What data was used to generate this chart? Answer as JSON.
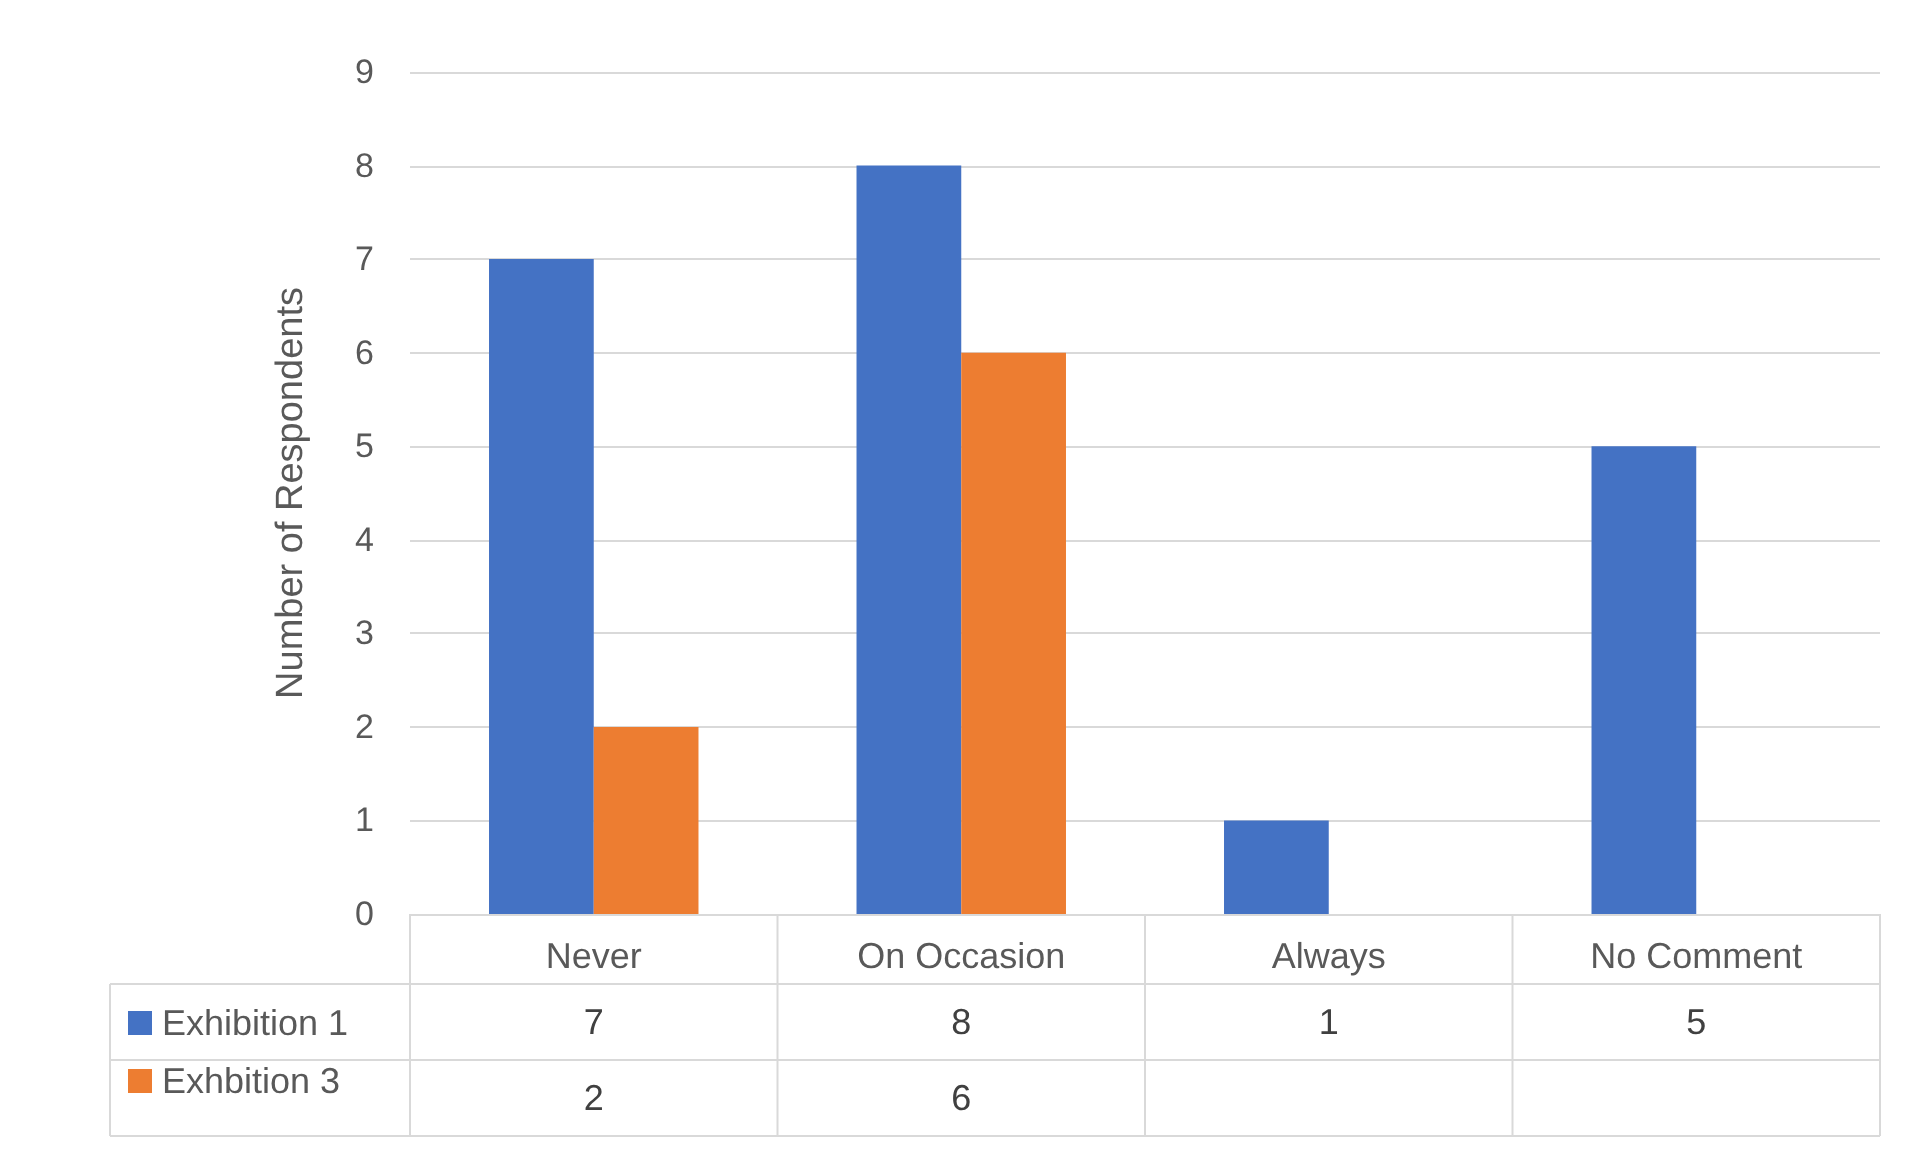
{
  "chart_data": {
    "type": "bar",
    "ylabel": "Number of Respondents",
    "categories": [
      "Never",
      "On Occasion",
      "Always",
      "No Comment"
    ],
    "series": [
      {
        "name": "Exhibition 1",
        "color": "#4472c4",
        "values": [
          7,
          8,
          1,
          5
        ]
      },
      {
        "name": "Exhbition 3",
        "color": "#ed7d31",
        "values": [
          2,
          6,
          null,
          null
        ]
      }
    ],
    "ylim": [
      0,
      9
    ],
    "yticks": [
      0,
      1,
      2,
      3,
      4,
      5,
      6,
      7,
      8,
      9
    ],
    "grid": "y",
    "legend": "bottom left",
    "data_labels": true
  }
}
